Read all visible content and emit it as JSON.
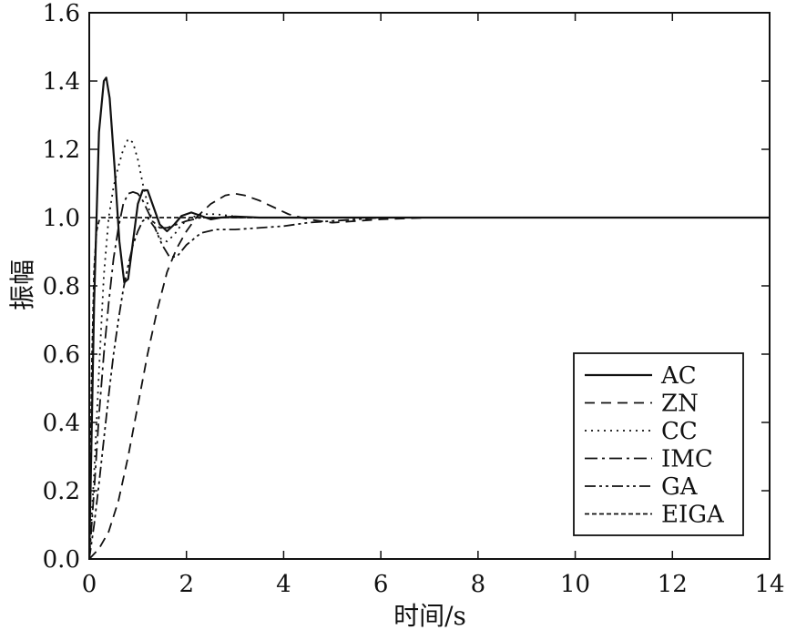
{
  "chart_data": {
    "type": "line",
    "xlabel": "时间/s",
    "ylabel": "振幅",
    "xlim": [
      0,
      14
    ],
    "ylim": [
      0,
      1.6
    ],
    "xticks": [
      "0",
      "2",
      "4",
      "6",
      "8",
      "10",
      "12",
      "14"
    ],
    "yticks": [
      "0.0",
      "0.2",
      "0.4",
      "0.6",
      "0.8",
      "1.0",
      "1.2",
      "1.4",
      "1.6"
    ],
    "grid": false,
    "legend": "bottom-right",
    "series": [
      {
        "name": "AC",
        "x": [
          0,
          0.1,
          0.2,
          0.3,
          0.35,
          0.42,
          0.52,
          0.62,
          0.72,
          0.8,
          0.9,
          1.0,
          1.1,
          1.2,
          1.3,
          1.45,
          1.6,
          1.75,
          1.9,
          2.1,
          2.3,
          2.5,
          2.7,
          3.0,
          3.5,
          4,
          5,
          6,
          8,
          10,
          12,
          14
        ],
        "y": [
          0,
          0.75,
          1.25,
          1.4,
          1.41,
          1.35,
          1.15,
          0.93,
          0.81,
          0.82,
          0.93,
          1.04,
          1.08,
          1.08,
          1.04,
          0.98,
          0.96,
          0.98,
          1.005,
          1.015,
          1.005,
          0.995,
          1.0,
          1.003,
          1.0,
          1.0,
          1.0,
          1.0,
          1.0,
          1.0,
          1.0,
          1.0
        ]
      },
      {
        "name": "ZN",
        "x": [
          0,
          0.2,
          0.4,
          0.6,
          0.8,
          1.0,
          1.2,
          1.4,
          1.6,
          1.8,
          2.0,
          2.2,
          2.5,
          2.8,
          3.0,
          3.2,
          3.5,
          3.8,
          4.1,
          4.5,
          5.0,
          5.5,
          6.0,
          7,
          8,
          10,
          12,
          14
        ],
        "y": [
          0,
          0.03,
          0.08,
          0.17,
          0.3,
          0.45,
          0.6,
          0.73,
          0.84,
          0.91,
          0.96,
          1.0,
          1.04,
          1.065,
          1.07,
          1.065,
          1.05,
          1.03,
          1.01,
          0.995,
          0.985,
          0.99,
          0.995,
          1.0,
          1.0,
          1.0,
          1.0,
          1.0
        ]
      },
      {
        "name": "CC",
        "x": [
          0,
          0.1,
          0.2,
          0.3,
          0.4,
          0.5,
          0.6,
          0.7,
          0.8,
          0.9,
          1.0,
          1.1,
          1.2,
          1.3,
          1.45,
          1.6,
          1.75,
          1.9,
          2.1,
          2.3,
          2.6,
          2.9,
          3.2,
          3.6,
          4,
          5,
          6,
          8,
          10,
          12,
          14
        ],
        "y": [
          0,
          0.25,
          0.55,
          0.83,
          1.0,
          1.09,
          1.15,
          1.2,
          1.23,
          1.22,
          1.17,
          1.1,
          1.04,
          0.99,
          0.94,
          0.93,
          0.95,
          0.98,
          1.0,
          1.01,
          1.01,
          1.005,
          1.0,
          1.0,
          1.0,
          1.0,
          1.0,
          1.0,
          1.0,
          1.0,
          1.0
        ]
      },
      {
        "name": "IMC",
        "x": [
          0,
          0.1,
          0.2,
          0.3,
          0.4,
          0.5,
          0.6,
          0.7,
          0.8,
          0.9,
          1.0,
          1.1,
          1.2,
          1.3,
          1.45,
          1.6,
          1.8,
          2.0,
          2.3,
          2.6,
          3.0,
          3.5,
          4,
          5,
          6,
          8,
          10,
          12,
          14
        ],
        "y": [
          0,
          0.2,
          0.42,
          0.6,
          0.75,
          0.88,
          0.97,
          1.04,
          1.07,
          1.075,
          1.07,
          1.05,
          1.02,
          0.99,
          0.97,
          0.97,
          0.98,
          0.99,
          1.0,
          1.0,
          1.0,
          1.0,
          1.0,
          1.0,
          1.0,
          1.0,
          1.0,
          1.0,
          1.0
        ]
      },
      {
        "name": "GA",
        "x": [
          0,
          0.1,
          0.2,
          0.3,
          0.4,
          0.5,
          0.6,
          0.7,
          0.8,
          0.9,
          1.0,
          1.1,
          1.2,
          1.35,
          1.5,
          1.65,
          1.8,
          2.0,
          2.3,
          2.6,
          3.0,
          3.5,
          4.0,
          4.5,
          5.0,
          5.5,
          6,
          7,
          8,
          10,
          12,
          14
        ],
        "y": [
          0,
          0.1,
          0.22,
          0.35,
          0.48,
          0.6,
          0.7,
          0.79,
          0.86,
          0.92,
          0.96,
          0.99,
          1.0,
          0.97,
          0.92,
          0.885,
          0.885,
          0.92,
          0.955,
          0.965,
          0.965,
          0.97,
          0.975,
          0.985,
          0.99,
          0.995,
          1.0,
          1.0,
          1.0,
          1.0,
          1.0,
          1.0
        ]
      },
      {
        "name": "EIGA",
        "x": [
          0,
          0.05,
          0.1,
          0.15,
          0.2,
          0.25,
          0.3,
          0.4,
          0.5,
          0.7,
          1.0,
          2,
          4,
          6,
          8,
          10,
          12,
          14
        ],
        "y": [
          0,
          0.55,
          0.85,
          0.96,
          0.99,
          1.0,
          1.0,
          1.0,
          1.0,
          1.0,
          1.0,
          1.0,
          1.0,
          1.0,
          1.0,
          1.0,
          1.0,
          1.0
        ]
      }
    ]
  }
}
